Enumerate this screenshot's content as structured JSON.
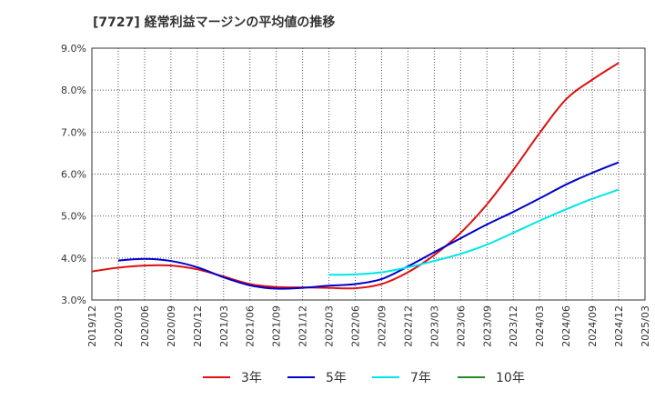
{
  "chart_data": {
    "type": "line",
    "title": "[7727]  経常利益マージンの平均値の推移",
    "xlabel": "",
    "ylabel": "",
    "x_ticks": [
      "2019/12",
      "2020/03",
      "2020/06",
      "2020/09",
      "2020/12",
      "2021/03",
      "2021/06",
      "2021/09",
      "2021/12",
      "2022/03",
      "2022/06",
      "2022/09",
      "2022/12",
      "2023/03",
      "2023/06",
      "2023/09",
      "2023/12",
      "2024/03",
      "2024/06",
      "2024/09",
      "2024/12",
      "2025/03"
    ],
    "y_ticks": [
      "3.0%",
      "4.0%",
      "5.0%",
      "6.0%",
      "7.0%",
      "8.0%",
      "9.0%"
    ],
    "ylim": [
      3.0,
      9.0
    ],
    "grid": true,
    "legend_position": "bottom",
    "series": [
      {
        "name": "3年",
        "color": "#dd1111",
        "points": [
          [
            "2019/12",
            3.68
          ],
          [
            "2020/03",
            3.77
          ],
          [
            "2020/06",
            3.82
          ],
          [
            "2020/09",
            3.82
          ],
          [
            "2020/12",
            3.73
          ],
          [
            "2021/03",
            3.56
          ],
          [
            "2021/06",
            3.38
          ],
          [
            "2021/09",
            3.31
          ],
          [
            "2021/12",
            3.3
          ],
          [
            "2022/03",
            3.29
          ],
          [
            "2022/06",
            3.28
          ],
          [
            "2022/09",
            3.38
          ],
          [
            "2022/12",
            3.66
          ],
          [
            "2023/03",
            4.07
          ],
          [
            "2023/06",
            4.6
          ],
          [
            "2023/09",
            5.28
          ],
          [
            "2023/12",
            6.1
          ],
          [
            "2024/03",
            6.98
          ],
          [
            "2024/06",
            7.78
          ],
          [
            "2024/09",
            8.25
          ],
          [
            "2024/12",
            8.65
          ]
        ]
      },
      {
        "name": "5年",
        "color": "#0000cc",
        "points": [
          [
            "2020/03",
            3.94
          ],
          [
            "2020/06",
            3.98
          ],
          [
            "2020/09",
            3.93
          ],
          [
            "2020/12",
            3.78
          ],
          [
            "2021/03",
            3.54
          ],
          [
            "2021/06",
            3.35
          ],
          [
            "2021/09",
            3.27
          ],
          [
            "2021/12",
            3.29
          ],
          [
            "2022/03",
            3.34
          ],
          [
            "2022/06",
            3.38
          ],
          [
            "2022/09",
            3.5
          ],
          [
            "2022/12",
            3.8
          ],
          [
            "2023/03",
            4.14
          ],
          [
            "2023/06",
            4.47
          ],
          [
            "2023/09",
            4.8
          ],
          [
            "2023/12",
            5.1
          ],
          [
            "2024/03",
            5.42
          ],
          [
            "2024/06",
            5.75
          ],
          [
            "2024/09",
            6.03
          ],
          [
            "2024/12",
            6.28
          ]
        ]
      },
      {
        "name": "7年",
        "color": "#00e6e6",
        "points": [
          [
            "2022/03",
            3.6
          ],
          [
            "2022/06",
            3.61
          ],
          [
            "2022/09",
            3.66
          ],
          [
            "2022/12",
            3.78
          ],
          [
            "2023/03",
            3.93
          ],
          [
            "2023/06",
            4.1
          ],
          [
            "2023/09",
            4.32
          ],
          [
            "2023/12",
            4.6
          ],
          [
            "2024/03",
            4.89
          ],
          [
            "2024/06",
            5.16
          ],
          [
            "2024/09",
            5.41
          ],
          [
            "2024/12",
            5.63
          ]
        ]
      },
      {
        "name": "10年",
        "color": "#228b22",
        "points": []
      }
    ]
  }
}
